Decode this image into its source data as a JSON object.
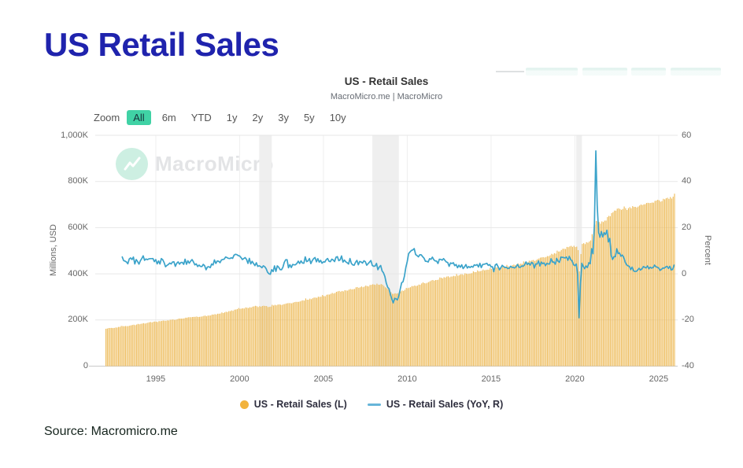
{
  "page": {
    "title": "US Retail Sales",
    "source": "Source: Macromicro.me"
  },
  "chart": {
    "title": "US - Retail Sales",
    "subtitle": "MacroMicro.me | MacroMicro",
    "watermark": "MacroMicro",
    "zoom_toolbar": {
      "label": "Zoom",
      "options": [
        "All",
        "6m",
        "YTD",
        "1y",
        "2y",
        "3y",
        "5y",
        "10y"
      ],
      "active": "All",
      "active_bg_color": "#40d2a5"
    },
    "legend": [
      {
        "label": "US - Retail Sales (L)",
        "marker": "circle",
        "color": "#f2b33d"
      },
      {
        "label": "US - Retail Sales (YoY, R)",
        "marker": "line",
        "color": "#66b5d9"
      }
    ]
  },
  "chart_data": {
    "type": "combo",
    "title": "US - Retail Sales",
    "grid": true,
    "x_range": [
      1992,
      2026
    ],
    "x_ticks": [
      1995,
      2000,
      2005,
      2010,
      2015,
      2020,
      2025
    ],
    "left_axis": {
      "label": "Millions, USD",
      "min": 0,
      "max": 1000000,
      "tick_labels": [
        "0",
        "200K",
        "400K",
        "600K",
        "800K",
        "1,000K"
      ]
    },
    "right_axis": {
      "label": "Percent",
      "min": -40,
      "max": 60,
      "tick_labels": [
        "-40",
        "-20",
        "0",
        "20",
        "40",
        "60"
      ]
    },
    "recession_bands": [
      [
        2001.17,
        2001.92
      ],
      [
        2007.92,
        2009.5
      ],
      [
        2020.08,
        2020.42
      ]
    ],
    "series": [
      {
        "name": "US - Retail Sales (L)",
        "type": "bar",
        "axis": "left",
        "color": "#eebd5e",
        "frequency": "monthly",
        "unit": "thousand millions USD (K)",
        "anchors": [
          [
            1992.0,
            163
          ],
          [
            1992.5,
            167
          ],
          [
            1993.0,
            172
          ],
          [
            1993.5,
            176
          ],
          [
            1994.0,
            182
          ],
          [
            1994.5,
            188
          ],
          [
            1995.0,
            193
          ],
          [
            1995.5,
            197
          ],
          [
            1996.0,
            201
          ],
          [
            1996.5,
            206
          ],
          [
            1997.0,
            211
          ],
          [
            1997.5,
            214
          ],
          [
            1998.0,
            218
          ],
          [
            1998.5,
            224
          ],
          [
            1999.0,
            232
          ],
          [
            1999.5,
            240
          ],
          [
            2000.0,
            249
          ],
          [
            2000.5,
            254
          ],
          [
            2001.0,
            258
          ],
          [
            2001.5,
            260
          ],
          [
            2001.75,
            257
          ],
          [
            2002.0,
            264
          ],
          [
            2002.5,
            267
          ],
          [
            2003.0,
            273
          ],
          [
            2003.5,
            280
          ],
          [
            2004.0,
            289
          ],
          [
            2004.5,
            296
          ],
          [
            2005.0,
            305
          ],
          [
            2005.5,
            315
          ],
          [
            2006.0,
            324
          ],
          [
            2006.5,
            331
          ],
          [
            2007.0,
            340
          ],
          [
            2007.5,
            347
          ],
          [
            2008.0,
            351
          ],
          [
            2008.17,
            356
          ],
          [
            2008.5,
            352
          ],
          [
            2008.75,
            340
          ],
          [
            2009.0,
            322
          ],
          [
            2009.17,
            312
          ],
          [
            2009.5,
            320
          ],
          [
            2009.75,
            328
          ],
          [
            2010.0,
            338
          ],
          [
            2010.5,
            350
          ],
          [
            2011.0,
            360
          ],
          [
            2011.5,
            370
          ],
          [
            2012.0,
            380
          ],
          [
            2012.5,
            388
          ],
          [
            2013.0,
            394
          ],
          [
            2013.5,
            401
          ],
          [
            2014.0,
            409
          ],
          [
            2014.5,
            418
          ],
          [
            2015.0,
            422
          ],
          [
            2015.5,
            427
          ],
          [
            2016.0,
            433
          ],
          [
            2016.5,
            440
          ],
          [
            2017.0,
            449
          ],
          [
            2017.5,
            457
          ],
          [
            2018.0,
            470
          ],
          [
            2018.5,
            480
          ],
          [
            2019.0,
            495
          ],
          [
            2019.5,
            515
          ],
          [
            2020.0,
            520
          ],
          [
            2020.08,
            525
          ],
          [
            2020.17,
            500
          ],
          [
            2020.25,
            408
          ],
          [
            2020.33,
            486
          ],
          [
            2020.42,
            527
          ],
          [
            2020.58,
            530
          ],
          [
            2020.75,
            535
          ],
          [
            2020.92,
            540
          ],
          [
            2021.0,
            568
          ],
          [
            2021.08,
            562
          ],
          [
            2021.17,
            618
          ],
          [
            2021.25,
            628
          ],
          [
            2021.33,
            625
          ],
          [
            2021.5,
            620
          ],
          [
            2021.67,
            624
          ],
          [
            2021.83,
            630
          ],
          [
            2021.92,
            634
          ],
          [
            2022.0,
            649
          ],
          [
            2022.17,
            668
          ],
          [
            2022.5,
            680
          ],
          [
            2022.75,
            678
          ],
          [
            2023.0,
            682
          ],
          [
            2023.5,
            690
          ],
          [
            2024.0,
            698
          ],
          [
            2024.5,
            706
          ],
          [
            2025.0,
            715
          ],
          [
            2025.5,
            724
          ],
          [
            2025.92,
            732
          ]
        ]
      },
      {
        "name": "US - Retail Sales (YoY, R)",
        "type": "line",
        "axis": "right",
        "color": "#3ba3ca",
        "derived": "yoy_pct_of_bar_series",
        "key_points_read_from_chart": [
          [
            1993,
            6
          ],
          [
            1995,
            5
          ],
          [
            1999,
            7
          ],
          [
            2001.8,
            1
          ],
          [
            2004,
            6.5
          ],
          [
            2007,
            4
          ],
          [
            2009.2,
            -12
          ],
          [
            2010.5,
            7
          ],
          [
            2015,
            2.5
          ],
          [
            2019,
            3.5
          ],
          [
            2020.25,
            -19.9
          ],
          [
            2021.25,
            52
          ],
          [
            2021.8,
            16
          ],
          [
            2022.5,
            8
          ],
          [
            2024,
            3
          ],
          [
            2025.9,
            4
          ]
        ]
      }
    ]
  }
}
